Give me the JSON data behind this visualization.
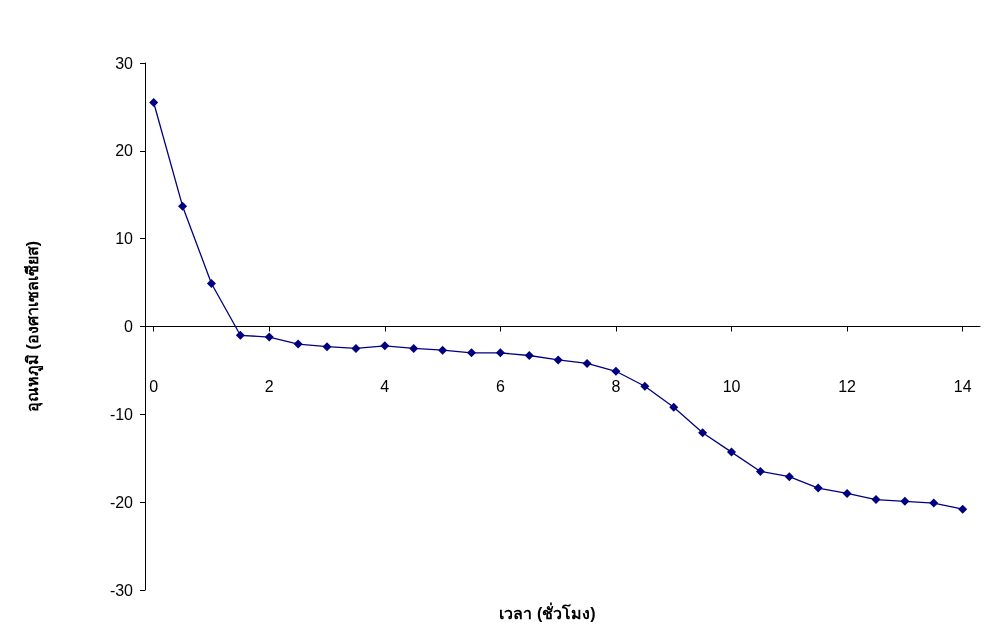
{
  "chart_data": {
    "type": "line",
    "xlabel": "เวลา (ชั่วโมง)",
    "ylabel": "อุณหภูมิ (องศาเซลเซียส)",
    "x": [
      0,
      0.5,
      1,
      1.5,
      2,
      2.5,
      3,
      3.5,
      4,
      4.5,
      5,
      5.5,
      6,
      6.5,
      7,
      7.5,
      8,
      8.5,
      9,
      9.5,
      10,
      10.5,
      11,
      11.5,
      12,
      12.5,
      13,
      13.5,
      14
    ],
    "series": [
      {
        "color": "#000080",
        "values": [
          25.5,
          13.7,
          4.9,
          -1,
          -1.2,
          -2,
          -2.3,
          -2.5,
          -2.2,
          -2.5,
          -2.7,
          -3,
          -3,
          -3.3,
          -3.8,
          -4.2,
          -5.1,
          -6.8,
          -9.2,
          -12.1,
          -14.3,
          -16.5,
          -17.1,
          -18.4,
          -19,
          -19.7,
          -19.9,
          -20.1,
          -20.8
        ]
      }
    ],
    "xlim": [
      -0.15,
      14.3
    ],
    "xticks": [
      0,
      2,
      4,
      6,
      8,
      10,
      12,
      14
    ],
    "ylim": [
      -30,
      30
    ],
    "yticks": [
      -30,
      -20,
      -10,
      0,
      10,
      20,
      30
    ],
    "marker": "diamond",
    "line_style": "solid"
  }
}
